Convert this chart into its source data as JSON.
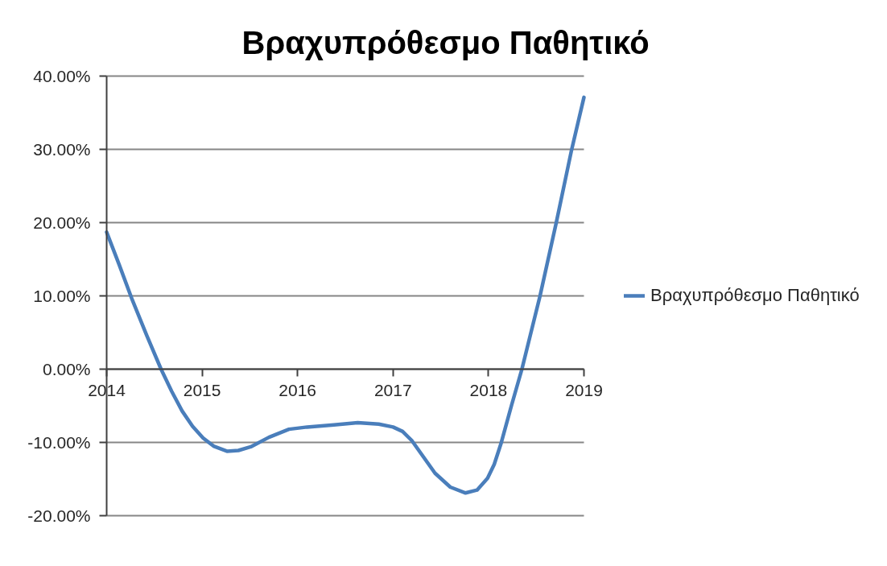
{
  "chart_data": {
    "type": "line",
    "title": "Βραχυπρόθεσμο Παθητικό",
    "x": [
      2014.0,
      2014.13,
      2014.27,
      2014.42,
      2014.57,
      2014.68,
      2014.79,
      2014.9,
      2015.01,
      2015.12,
      2015.26,
      2015.38,
      2015.51,
      2015.7,
      2015.91,
      2016.1,
      2016.38,
      2016.63,
      2016.85,
      2017.0,
      2017.1,
      2017.2,
      2017.32,
      2017.44,
      2017.6,
      2017.76,
      2017.88,
      2017.99,
      2018.06,
      2018.13,
      2018.24,
      2018.35,
      2018.54,
      2018.71,
      2018.87,
      2019.0
    ],
    "series": [
      {
        "name": "Βραχυπρόθεσμο Παθητικό",
        "color": "#4a7ebb",
        "values": [
          18.7,
          14.3,
          9.4,
          4.6,
          0.0,
          -3.0,
          -5.7,
          -7.8,
          -9.4,
          -10.5,
          -11.2,
          -11.1,
          -10.6,
          -9.3,
          -8.2,
          -7.9,
          -7.6,
          -7.3,
          -7.5,
          -7.9,
          -8.5,
          -9.8,
          -12.0,
          -14.2,
          -16.1,
          -16.9,
          -16.5,
          -14.9,
          -13.0,
          -10.2,
          -5.0,
          0.0,
          10.0,
          20.0,
          29.9,
          37.1
        ]
      }
    ],
    "xlim": [
      2014,
      2019
    ],
    "xticks": [
      2014,
      2015,
      2016,
      2017,
      2018,
      2019
    ],
    "ylim": [
      -20,
      40
    ],
    "yticks": [
      {
        "value": -20,
        "label": "-20.00%"
      },
      {
        "value": -10,
        "label": "-10.00%"
      },
      {
        "value": 0,
        "label": "0.00%"
      },
      {
        "value": 10,
        "label": "10.00%"
      },
      {
        "value": 20,
        "label": "20.00%"
      },
      {
        "value": 30,
        "label": "30.00%"
      },
      {
        "value": 40,
        "label": "40.00%"
      }
    ],
    "grid": "y",
    "legend": "right",
    "line_style": "solid"
  }
}
